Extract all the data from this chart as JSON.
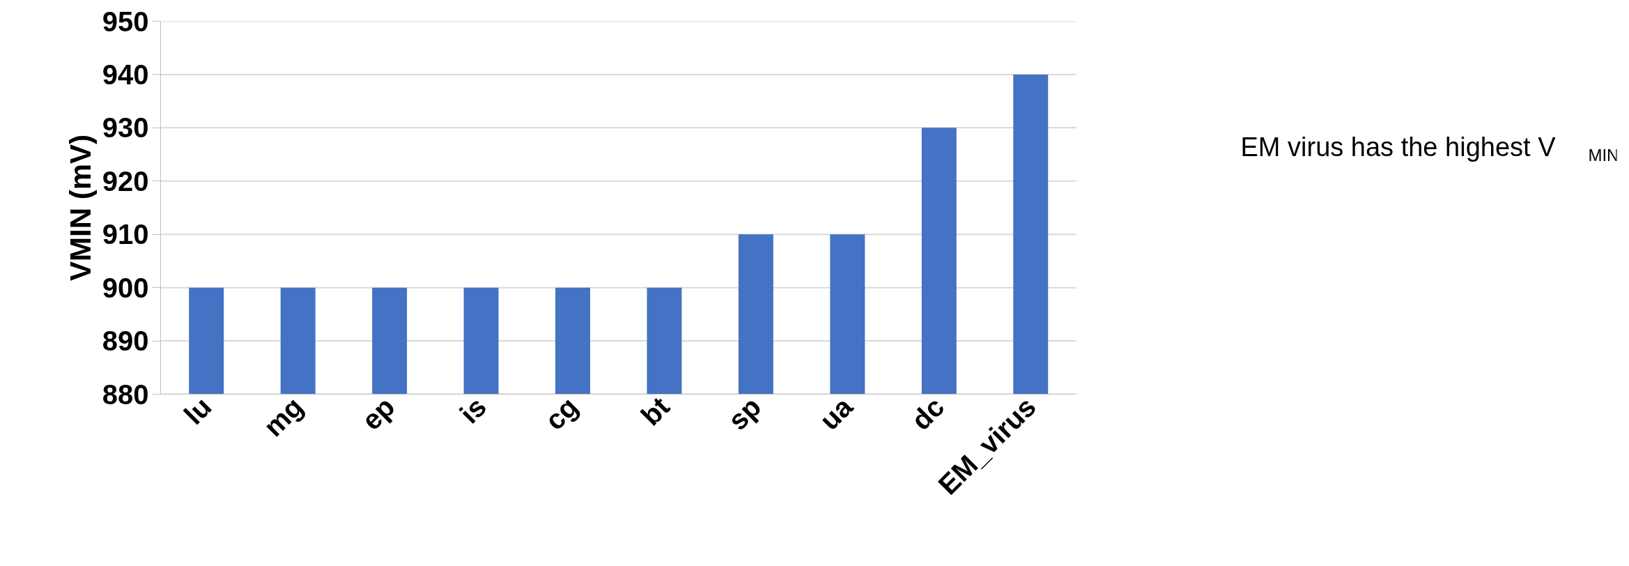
{
  "chart_data": {
    "type": "bar",
    "ylabel": "VMIN (mV)",
    "categories": [
      "lu",
      "mg",
      "ep",
      "is",
      "cg",
      "bt",
      "sp",
      "ua",
      "dc",
      "EM_virus"
    ],
    "values": [
      900,
      900,
      900,
      900,
      900,
      900,
      910,
      910,
      930,
      940
    ],
    "color": "#4472c4",
    "ylim": [
      880,
      950
    ],
    "yticks": [
      880,
      890,
      900,
      910,
      920,
      930,
      940,
      950
    ],
    "grid": "y",
    "annotations": [
      "EM virus has the highest V$_{MIN}$"
    ]
  }
}
